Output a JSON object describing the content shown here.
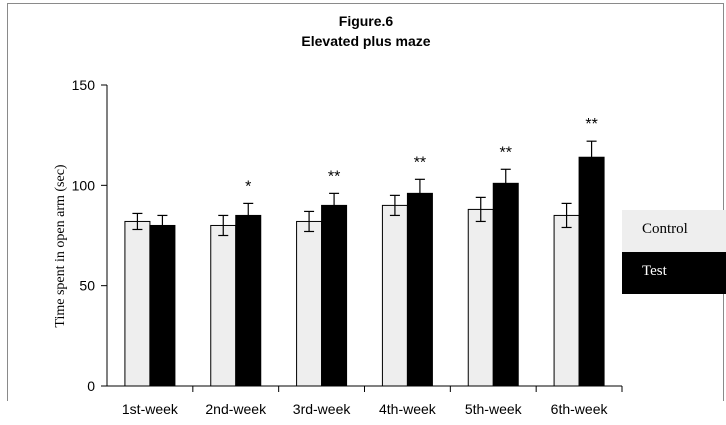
{
  "chart_data": {
    "type": "bar",
    "title": "Figure.6",
    "subtitle": "Elevated plus maze",
    "ylabel": "Time spent in open arm (sec)",
    "xlabel": "",
    "ylim": [
      0,
      150
    ],
    "yticks": [
      0,
      50,
      100,
      150
    ],
    "categories": [
      "1st-week",
      "2nd-week",
      "3rd-week",
      "4th-week",
      "5th-week",
      "6th-week"
    ],
    "series": [
      {
        "name": "Control",
        "color": "#eeeeee",
        "values": [
          82,
          80,
          82,
          90,
          88,
          85
        ],
        "errors": [
          4,
          5,
          5,
          5,
          6,
          6
        ]
      },
      {
        "name": "Test",
        "color": "#000000",
        "values": [
          80,
          85,
          90,
          96,
          101,
          114
        ],
        "errors": [
          5,
          6,
          6,
          7,
          7,
          8
        ]
      }
    ],
    "significance": [
      "",
      "*",
      "**",
      "**",
      "**",
      "**"
    ],
    "legend_position": "right",
    "grid": false
  }
}
